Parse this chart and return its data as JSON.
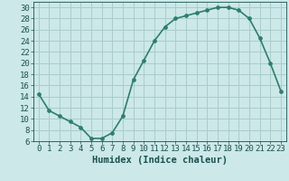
{
  "x": [
    0,
    1,
    2,
    3,
    4,
    5,
    6,
    7,
    8,
    9,
    10,
    11,
    12,
    13,
    14,
    15,
    16,
    17,
    18,
    19,
    20,
    21,
    22,
    23
  ],
  "y": [
    14.5,
    11.5,
    10.5,
    9.5,
    8.5,
    6.5,
    6.5,
    7.5,
    10.5,
    17.0,
    20.5,
    24.0,
    26.5,
    28.0,
    28.5,
    29.0,
    29.5,
    30.0,
    30.0,
    29.5,
    28.0,
    24.5,
    20.0,
    15.0
  ],
  "line_color": "#2e7d6e",
  "marker_color": "#2e7d6e",
  "bg_color": "#cce8e8",
  "grid_color": "#aacccc",
  "xlabel": "Humidex (Indice chaleur)",
  "ylabel": "",
  "title": "",
  "xlim": [
    -0.5,
    23.5
  ],
  "ylim": [
    6,
    31
  ],
  "yticks": [
    6,
    8,
    10,
    12,
    14,
    16,
    18,
    20,
    22,
    24,
    26,
    28,
    30
  ],
  "xticks": [
    0,
    1,
    2,
    3,
    4,
    5,
    6,
    7,
    8,
    9,
    10,
    11,
    12,
    13,
    14,
    15,
    16,
    17,
    18,
    19,
    20,
    21,
    22,
    23
  ],
  "font_color": "#1a5050",
  "tick_fontsize": 6.5,
  "xlabel_fontsize": 7.5,
  "line_width": 1.2,
  "marker_size": 2.8
}
